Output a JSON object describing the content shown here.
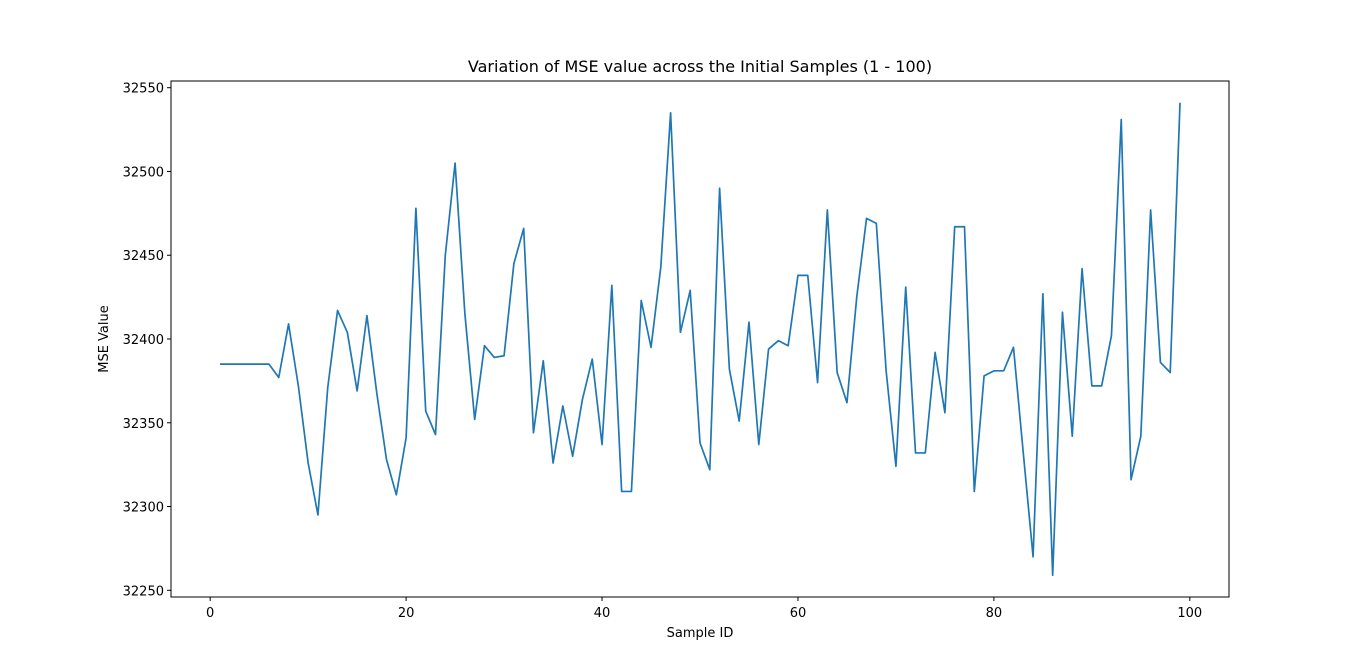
{
  "chart_data": {
    "type": "line",
    "title": "Variation of MSE value across the Initial Samples (1 - 100)",
    "xlabel": "Sample ID",
    "ylabel": "MSE Value",
    "xlim": [
      -4,
      104
    ],
    "ylim": [
      32246,
      32554
    ],
    "xticks": [
      0,
      20,
      40,
      60,
      80,
      100
    ],
    "yticks": [
      32250,
      32300,
      32350,
      32400,
      32450,
      32500,
      32550
    ],
    "grid": false,
    "line_color": "#1f77b4",
    "series": [
      {
        "x": [
          1,
          2,
          3,
          4,
          5,
          6,
          7,
          8,
          9,
          10,
          11,
          12,
          13,
          14,
          15,
          16,
          17,
          18,
          19,
          20,
          21,
          22,
          23,
          24,
          25,
          26,
          27,
          28,
          29,
          30,
          31,
          32,
          33,
          34,
          35,
          36,
          37,
          38,
          39,
          40,
          41,
          42,
          43,
          44,
          45,
          46,
          47,
          48,
          49,
          50,
          51,
          52,
          53,
          54,
          55,
          56,
          57,
          58,
          59,
          60,
          61,
          62,
          63,
          64,
          65,
          66,
          67,
          68,
          69,
          70,
          71,
          72,
          73,
          74,
          75,
          76,
          77,
          78,
          79,
          80,
          81,
          82,
          83,
          84,
          85,
          86,
          87,
          88,
          89,
          90,
          91,
          92,
          93,
          94,
          95,
          96,
          97,
          98,
          99
        ],
        "values": [
          32385,
          32385,
          32385,
          32385,
          32385,
          32385,
          32377,
          32409,
          32372,
          32326,
          32295,
          32371,
          32417,
          32404,
          32369,
          32414,
          32368,
          32328,
          32307,
          32341,
          32478,
          32357,
          32343,
          32450,
          32505,
          32415,
          32352,
          32396,
          32389,
          32390,
          32445,
          32466,
          32344,
          32387,
          32326,
          32360,
          32330,
          32364,
          32388,
          32337,
          32432,
          32309,
          32309,
          32423,
          32395,
          32443,
          32535,
          32404,
          32429,
          32338,
          32322,
          32490,
          32382,
          32351,
          32410,
          32337,
          32394,
          32399,
          32396,
          32438,
          32438,
          32374,
          32477,
          32380,
          32362,
          32425,
          32472,
          32469,
          32381,
          32324,
          32431,
          32332,
          32332,
          32392,
          32356,
          32467,
          32467,
          32309,
          32378,
          32381,
          32381,
          32395,
          32332,
          32270,
          32427,
          32259,
          32416,
          32342,
          32442,
          32372,
          32372,
          32402,
          32531,
          32316,
          32342,
          32477,
          32386,
          32380,
          32541
        ]
      }
    ]
  }
}
